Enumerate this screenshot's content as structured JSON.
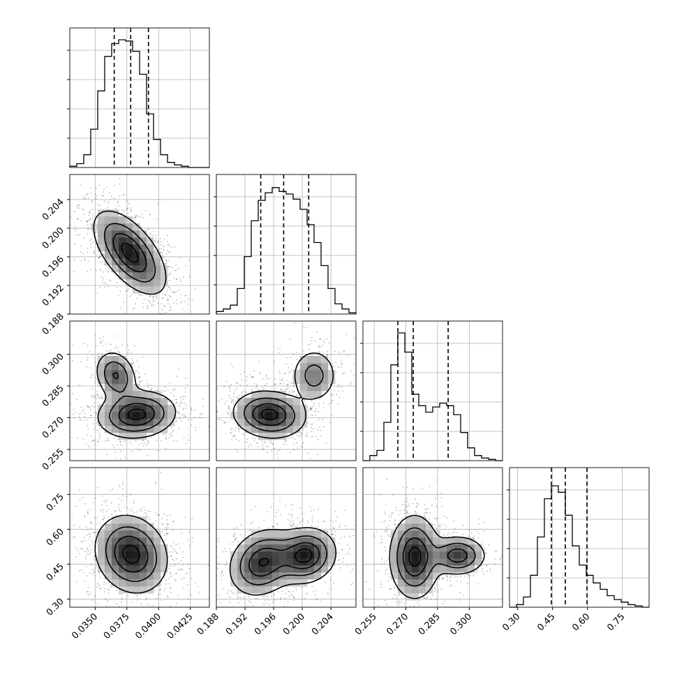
{
  "chart_data": {
    "type": "corner",
    "title": "",
    "parameters": [
      {
        "name": "",
        "range": [
          0.033,
          0.044
        ],
        "ticks": [
          "0.0350",
          "0.0375",
          "0.0400",
          "0.0425"
        ],
        "tick_values": [
          0.035,
          0.0375,
          0.04,
          0.0425
        ],
        "quantiles": [
          0.0365,
          0.0378,
          0.0392
        ]
      },
      {
        "name": "",
        "range": [
          0.188,
          0.2075
        ],
        "ticks": [
          "0.188",
          "0.192",
          "0.196",
          "0.200",
          "0.204"
        ],
        "tick_values": [
          0.188,
          0.192,
          0.196,
          0.2,
          0.204
        ],
        "quantiles": [
          0.1942,
          0.1974,
          0.2009
        ]
      },
      {
        "name": "",
        "range": [
          0.2497,
          0.3157
        ],
        "ticks": [
          "0.255",
          "0.270",
          "0.285",
          "0.300"
        ],
        "tick_values": [
          0.255,
          0.27,
          0.285,
          0.3
        ],
        "quantiles": [
          0.2662,
          0.2735,
          0.29
        ]
      },
      {
        "name": "",
        "range": [
          0.265,
          0.865
        ],
        "ticks": [
          "0.30",
          "0.45",
          "0.60",
          "0.75"
        ],
        "tick_values": [
          0.3,
          0.45,
          0.6,
          0.75
        ],
        "quantiles": [
          0.445,
          0.505,
          0.598
        ]
      }
    ],
    "histograms": [
      [
        0.01,
        0.03,
        0.1,
        0.3,
        0.6,
        0.87,
        0.97,
        1.0,
        0.99,
        0.91,
        0.73,
        0.42,
        0.22,
        0.1,
        0.04,
        0.02,
        0.01,
        0.0,
        0.0,
        0.0
      ],
      [
        0.02,
        0.04,
        0.07,
        0.2,
        0.45,
        0.73,
        0.89,
        0.95,
        0.99,
        0.96,
        0.94,
        0.9,
        0.82,
        0.7,
        0.56,
        0.38,
        0.2,
        0.08,
        0.04,
        0.01
      ],
      [
        0.0,
        0.04,
        0.08,
        0.3,
        0.75,
        1.0,
        0.85,
        0.52,
        0.43,
        0.38,
        0.42,
        0.45,
        0.43,
        0.36,
        0.22,
        0.1,
        0.04,
        0.02,
        0.01,
        0.0
      ],
      [
        0.0,
        0.02,
        0.08,
        0.25,
        0.55,
        0.85,
        0.95,
        0.9,
        0.72,
        0.48,
        0.33,
        0.25,
        0.19,
        0.14,
        0.09,
        0.06,
        0.04,
        0.02,
        0.01,
        0.0
      ]
    ],
    "grid": true,
    "legend": "none"
  }
}
